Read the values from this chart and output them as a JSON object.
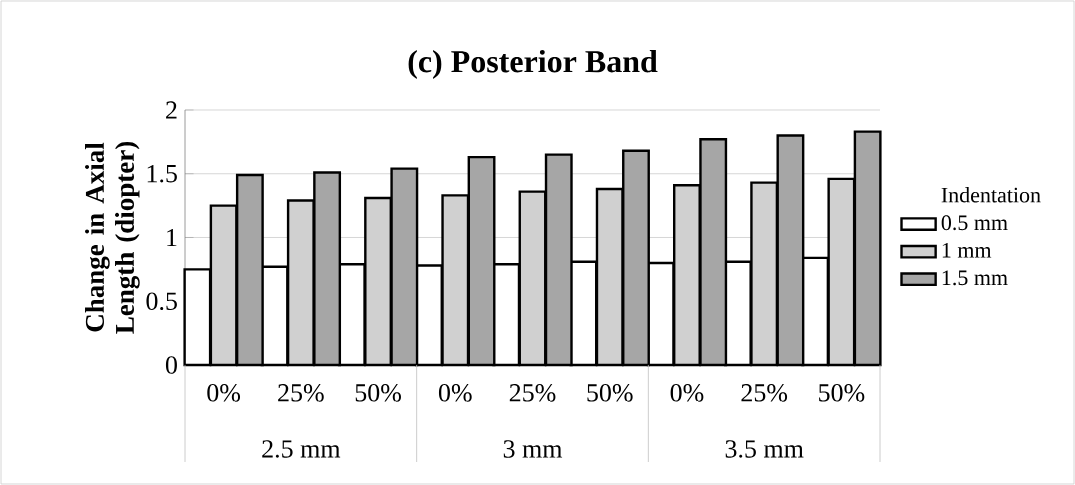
{
  "chart_data": {
    "type": "bar",
    "title": "(c) Posterior Band",
    "ylabel": "Change in Axial Length (diopter)",
    "legend_title": "Indentation",
    "categories": [
      "0%",
      "25%",
      "50%",
      "0%",
      "25%",
      "50%",
      "0%",
      "25%",
      "50%"
    ],
    "annotations": [
      "2.5 mm",
      "3 mm",
      "3.5 mm"
    ],
    "series": [
      {
        "name": "0.5 mm",
        "color": "#ffffff",
        "values": [
          0.75,
          0.77,
          0.79,
          0.78,
          0.79,
          0.81,
          0.8,
          0.81,
          0.84
        ]
      },
      {
        "name": "1 mm",
        "color": "#d0d0d0",
        "values": [
          1.25,
          1.29,
          1.31,
          1.33,
          1.36,
          1.38,
          1.41,
          1.43,
          1.46
        ]
      },
      {
        "name": "1.5 mm",
        "color": "#a6a6a6",
        "values": [
          1.49,
          1.51,
          1.54,
          1.63,
          1.65,
          1.68,
          1.77,
          1.8,
          1.83
        ]
      }
    ],
    "ylim": [
      0,
      2
    ],
    "yticks": [
      0,
      0.5,
      1,
      1.5,
      2
    ],
    "grid": "y",
    "legend": "right"
  }
}
